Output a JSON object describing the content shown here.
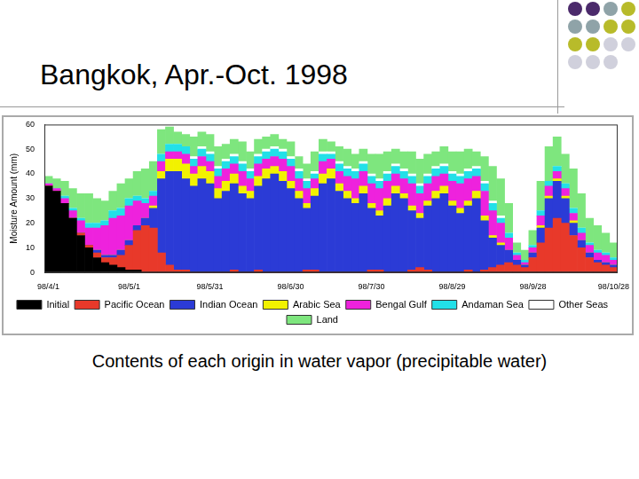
{
  "chart_data": {
    "type": "bar",
    "title": "Bangkok, Apr.-Oct. 1998",
    "subtitle": "Contents of each origin in water vapor (precipitable water)",
    "y_label": "Moisture Amount (mm)",
    "categories": [
      "98/4/1",
      null,
      null,
      null,
      null,
      null,
      null,
      null,
      null,
      null,
      "98/5/1",
      null,
      null,
      null,
      null,
      null,
      null,
      null,
      null,
      null,
      "98/5/31",
      null,
      null,
      null,
      null,
      null,
      null,
      null,
      null,
      null,
      "98/6/30",
      null,
      null,
      null,
      null,
      null,
      null,
      null,
      null,
      null,
      "98/7/30",
      null,
      null,
      null,
      null,
      null,
      null,
      null,
      null,
      null,
      "98/8/29",
      null,
      null,
      null,
      null,
      null,
      null,
      null,
      null,
      null,
      "98/9/28",
      null,
      null,
      null,
      null,
      null,
      null,
      null,
      null,
      null,
      "98/10/28"
    ],
    "series": [
      {
        "name": "Initial",
        "color": "#000000",
        "values": [
          35,
          33,
          28,
          22,
          15,
          10,
          6,
          4,
          3,
          2,
          1,
          1,
          0,
          0,
          0,
          0,
          0,
          0,
          0,
          0,
          0,
          0,
          0,
          0,
          0,
          0,
          0,
          0,
          0,
          0,
          0,
          0,
          0,
          0,
          0,
          0,
          0,
          0,
          0,
          0,
          0,
          0,
          0,
          0,
          0,
          0,
          0,
          0,
          0,
          0,
          0,
          0,
          0,
          0,
          0,
          0,
          0,
          0,
          0,
          0,
          0,
          0,
          0,
          0,
          0,
          0,
          0,
          0,
          0,
          0,
          0
        ]
      },
      {
        "name": "Pacific Ocean",
        "color": "#e8392a",
        "values": [
          0,
          0,
          0,
          0,
          1,
          1,
          2,
          2,
          3,
          5,
          10,
          16,
          19,
          18,
          8,
          3,
          1,
          1,
          0,
          0,
          0,
          0,
          0,
          1,
          0,
          0,
          1,
          0,
          0,
          0,
          0,
          0,
          1,
          1,
          0,
          0,
          0,
          0,
          0,
          0,
          1,
          1,
          0,
          0,
          0,
          1,
          2,
          1,
          0,
          0,
          0,
          0,
          1,
          0,
          1,
          2,
          3,
          4,
          3,
          2,
          6,
          12,
          18,
          22,
          20,
          15,
          10,
          6,
          4,
          3,
          2
        ]
      },
      {
        "name": "Indian Ocean",
        "color": "#2b3bd6",
        "values": [
          0,
          0,
          0,
          0,
          0,
          0,
          1,
          1,
          1,
          2,
          2,
          2,
          3,
          8,
          30,
          38,
          40,
          37,
          35,
          38,
          36,
          30,
          33,
          35,
          32,
          30,
          34,
          38,
          40,
          37,
          34,
          30,
          25,
          30,
          36,
          38,
          33,
          30,
          28,
          32,
          25,
          22,
          27,
          32,
          30,
          24,
          20,
          26,
          30,
          32,
          27,
          24,
          26,
          30,
          20,
          12,
          8,
          5,
          2,
          1,
          2,
          6,
          12,
          15,
          10,
          5,
          3,
          2,
          1,
          1,
          1
        ]
      },
      {
        "name": "Arabic Sea",
        "color": "#f2f200",
        "values": [
          0,
          0,
          0,
          0,
          0,
          0,
          0,
          0,
          0,
          0,
          0,
          0,
          0,
          1,
          3,
          5,
          5,
          6,
          5,
          5,
          5,
          4,
          4,
          4,
          3,
          3,
          4,
          4,
          3,
          4,
          3,
          3,
          2,
          3,
          4,
          4,
          3,
          3,
          2,
          3,
          2,
          2,
          3,
          3,
          2,
          2,
          2,
          2,
          3,
          3,
          2,
          2,
          2,
          3,
          2,
          1,
          1,
          0,
          0,
          0,
          0,
          1,
          1,
          1,
          1,
          1,
          0,
          0,
          0,
          0,
          0
        ]
      },
      {
        "name": "Bengal Gulf",
        "color": "#ee22dd",
        "values": [
          1,
          1,
          2,
          3,
          5,
          7,
          9,
          12,
          15,
          14,
          14,
          10,
          6,
          4,
          4,
          3,
          3,
          4,
          3,
          4,
          4,
          5,
          5,
          4,
          6,
          5,
          5,
          4,
          4,
          5,
          6,
          5,
          6,
          4,
          5,
          4,
          5,
          6,
          8,
          6,
          8,
          9,
          7,
          5,
          6,
          9,
          8,
          7,
          6,
          5,
          8,
          10,
          9,
          6,
          10,
          10,
          8,
          5,
          2,
          1,
          2,
          4,
          4,
          3,
          3,
          3,
          3,
          3,
          3,
          3,
          2
        ]
      },
      {
        "name": "Andaman Sea",
        "color": "#22e0e8",
        "values": [
          0,
          0,
          1,
          1,
          1,
          2,
          2,
          2,
          3,
          3,
          3,
          2,
          2,
          2,
          3,
          3,
          3,
          3,
          3,
          3,
          3,
          3,
          3,
          3,
          3,
          3,
          3,
          3,
          3,
          3,
          3,
          3,
          3,
          2,
          3,
          2,
          3,
          3,
          3,
          3,
          3,
          3,
          3,
          3,
          3,
          3,
          3,
          3,
          3,
          3,
          3,
          3,
          3,
          3,
          3,
          3,
          2,
          2,
          1,
          1,
          1,
          2,
          2,
          2,
          2,
          2,
          2,
          1,
          1,
          1,
          1
        ]
      },
      {
        "name": "Other Seas",
        "color": "#ffffff",
        "values": [
          0,
          0,
          0,
          0,
          0,
          0,
          0,
          0,
          0,
          0,
          0,
          0,
          0,
          0,
          0,
          0,
          0,
          0,
          1,
          1,
          1,
          1,
          1,
          1,
          1,
          1,
          1,
          1,
          1,
          1,
          1,
          1,
          1,
          1,
          1,
          1,
          1,
          1,
          1,
          1,
          1,
          1,
          1,
          1,
          1,
          1,
          1,
          1,
          1,
          1,
          1,
          1,
          1,
          1,
          1,
          1,
          1,
          0,
          0,
          0,
          0,
          0,
          0,
          0,
          0,
          0,
          0,
          0,
          0,
          0,
          0
        ]
      },
      {
        "name": "Land",
        "color": "#7ee67e",
        "values": [
          3,
          4,
          6,
          8,
          10,
          12,
          10,
          8,
          8,
          10,
          8,
          10,
          12,
          12,
          10,
          7,
          5,
          5,
          8,
          6,
          7,
          8,
          6,
          6,
          8,
          7,
          6,
          5,
          5,
          4,
          6,
          5,
          6,
          8,
          5,
          4,
          6,
          7,
          6,
          5,
          8,
          10,
          8,
          6,
          7,
          9,
          10,
          8,
          6,
          7,
          8,
          9,
          8,
          6,
          10,
          14,
          15,
          12,
          4,
          4,
          6,
          12,
          14,
          12,
          12,
          16,
          14,
          10,
          10,
          8,
          6
        ]
      }
    ],
    "ylim": [
      0,
      60
    ],
    "yticks": [
      0,
      10,
      20,
      30,
      40,
      50,
      60
    ],
    "stacked": true,
    "grid": false,
    "legend": "bottom"
  }
}
